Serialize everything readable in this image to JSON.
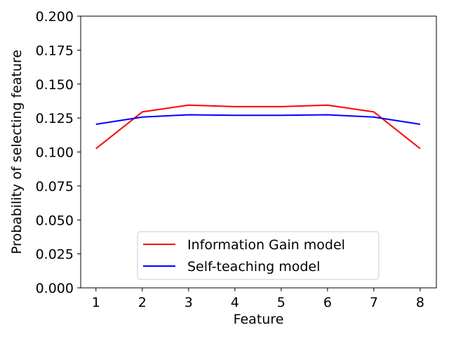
{
  "chart_data": {
    "type": "line",
    "title": "",
    "xlabel": "Feature",
    "ylabel": "Probability of selecting feature",
    "x": [
      1,
      2,
      3,
      4,
      5,
      6,
      7,
      8
    ],
    "xlim": [
      0.67,
      8.35
    ],
    "ylim": [
      0.0,
      0.2
    ],
    "xticks": [
      "1",
      "2",
      "3",
      "4",
      "5",
      "6",
      "7",
      "8"
    ],
    "yticks": [
      "0.000",
      "0.025",
      "0.050",
      "0.075",
      "0.100",
      "0.125",
      "0.150",
      "0.175",
      "0.200"
    ],
    "grid": false,
    "legend_position": "lower-center",
    "series": [
      {
        "name": "Information Gain model",
        "color": "#ff0000",
        "values": [
          0.1025,
          0.1295,
          0.1345,
          0.1334,
          0.1334,
          0.1345,
          0.1295,
          0.1025
        ]
      },
      {
        "name": "Self-teaching model",
        "color": "#0000ff",
        "values": [
          0.1204,
          0.1257,
          0.1274,
          0.127,
          0.127,
          0.1274,
          0.1257,
          0.1204
        ]
      }
    ]
  }
}
